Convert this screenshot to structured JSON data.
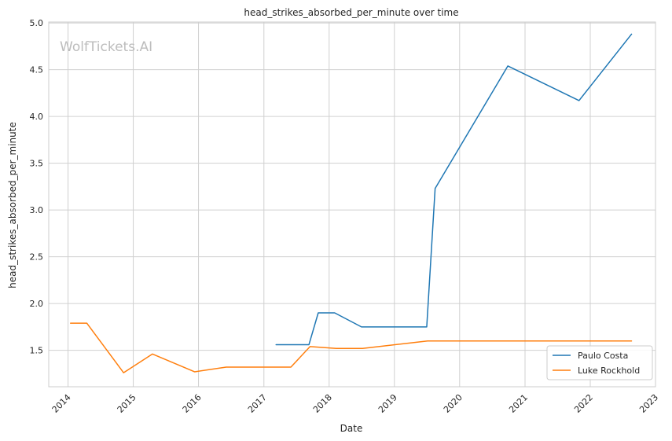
{
  "watermark": "WolfTickets.AI",
  "colors": {
    "series_0": "#1f77b4",
    "series_1": "#ff7f0e",
    "grid": "#d0d0d0",
    "frame": "#cccccc"
  },
  "chart_data": {
    "type": "line",
    "title": "head_strikes_absorbed_per_minute over time",
    "xlabel": "Date",
    "ylabel": "head_strikes_absorbed_per_minute",
    "x_axis": "date",
    "xlim": [
      "2013-09-15",
      "2023-01-01"
    ],
    "ylim": [
      1.11,
      5.01
    ],
    "x_ticks": [
      "2014",
      "2015",
      "2016",
      "2017",
      "2018",
      "2019",
      "2020",
      "2021",
      "2022",
      "2023"
    ],
    "y_ticks": [
      "1.5",
      "2.0",
      "2.5",
      "3.0",
      "3.5",
      "4.0",
      "4.5",
      "5.0"
    ],
    "grid": true,
    "legend_position": "bottom-right",
    "series": [
      {
        "name": "Paulo Costa",
        "color": "#1f77b4",
        "points": [
          [
            "2017-03-10",
            1.56
          ],
          [
            "2017-09-10",
            1.56
          ],
          [
            "2017-11-01",
            1.9
          ],
          [
            "2018-02-01",
            1.9
          ],
          [
            "2018-07-01",
            1.75
          ],
          [
            "2019-07-01",
            1.75
          ],
          [
            "2019-08-17",
            3.23
          ],
          [
            "2020-09-27",
            4.54
          ],
          [
            "2021-10-30",
            4.17
          ],
          [
            "2022-08-20",
            4.88
          ]
        ]
      },
      {
        "name": "Luke Rockhold",
        "color": "#ff7f0e",
        "points": [
          [
            "2014-01-15",
            1.79
          ],
          [
            "2014-04-16",
            1.79
          ],
          [
            "2014-11-08",
            1.26
          ],
          [
            "2015-04-18",
            1.46
          ],
          [
            "2015-12-10",
            1.27
          ],
          [
            "2016-06-04",
            1.32
          ],
          [
            "2017-06-01",
            1.32
          ],
          [
            "2017-09-16",
            1.54
          ],
          [
            "2018-02-10",
            1.52
          ],
          [
            "2018-07-07",
            1.52
          ],
          [
            "2019-07-06",
            1.6
          ],
          [
            "2022-07-30",
            1.6
          ],
          [
            "2022-08-20",
            1.6
          ]
        ]
      }
    ]
  }
}
